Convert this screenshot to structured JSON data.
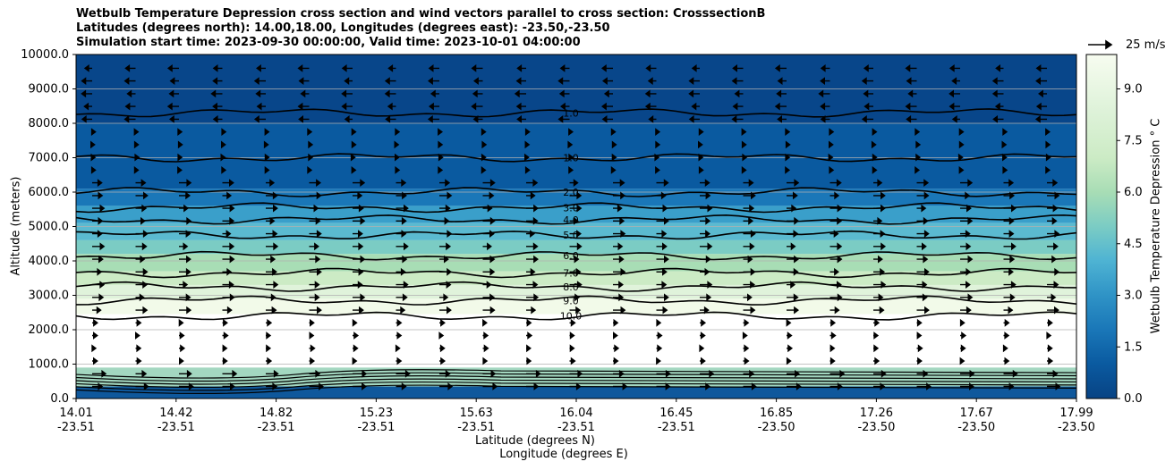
{
  "chart_data": {
    "type": "contour",
    "title_lines": [
      "Wetbulb Temperature Depression cross section and wind vectors parallel to cross section: CrosssectionB",
      "Latitudes (degrees north): 14.00,18.00, Longitudes (degrees east): -23.50,-23.50",
      "Simulation start time: 2023-09-30 00:00:00, Valid time: 2023-10-01 04:00:00"
    ],
    "ylabel": "Altitude (meters)",
    "xlabel_lat": "Latitude (degrees N)",
    "xlabel_lon": "Longitude (degrees E)",
    "ylim": [
      0,
      10000
    ],
    "y_ticks": [
      "0.0",
      "1000.0",
      "2000.0",
      "3000.0",
      "4000.0",
      "5000.0",
      "6000.0",
      "7000.0",
      "8000.0",
      "9000.0",
      "10000.0"
    ],
    "x_ticks_lat": [
      "14.01",
      "14.42",
      "14.82",
      "15.23",
      "15.63",
      "16.04",
      "16.45",
      "16.85",
      "17.26",
      "17.67",
      "17.99"
    ],
    "x_ticks_lon": [
      "-23.51",
      "-23.51",
      "-23.51",
      "-23.51",
      "-23.51",
      "-23.51",
      "-23.51",
      "-23.50",
      "-23.50",
      "-23.50",
      "-23.50"
    ],
    "colorbar": {
      "label": "Wetbulb Temperature Depression $^\\circ$C",
      "label_display": "Wetbulb Temperature Depression ° C",
      "ticks": [
        "0.0",
        "1.5",
        "3.0",
        "4.5",
        "6.0",
        "7.5",
        "9.0"
      ],
      "range": [
        0,
        10
      ],
      "colormap": "GnBu_r"
    },
    "quiver_key": "25 m/s",
    "contour_levels": [
      {
        "label": "10.0",
        "altitude": 2400
      },
      {
        "label": "9.0",
        "altitude": 2850
      },
      {
        "label": "8.0",
        "altitude": 3250
      },
      {
        "label": "7.0",
        "altitude": 3650
      },
      {
        "label": "6.0",
        "altitude": 4150
      },
      {
        "label": "5.0",
        "altitude": 4750
      },
      {
        "label": "4.0",
        "altitude": 5200
      },
      {
        "label": "3.0",
        "altitude": 5550
      },
      {
        "label": "2.0",
        "altitude": 6000
      },
      {
        "label": "1.0",
        "altitude": 7000
      },
      {
        "label": "1.0",
        "altitude": 8300
      }
    ],
    "grid": true
  }
}
